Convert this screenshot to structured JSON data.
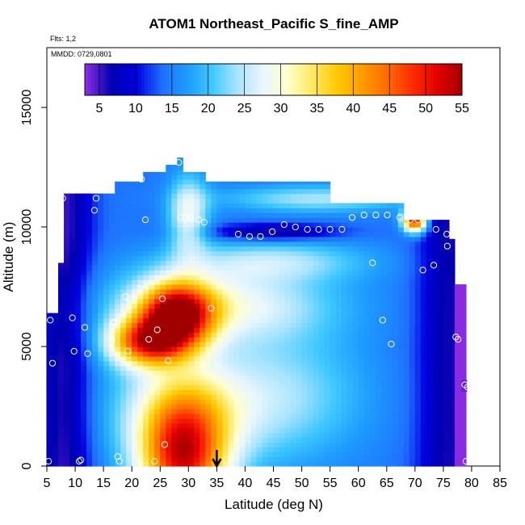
{
  "chart_data": {
    "type": "heatmap",
    "title": "ATOM1 Northeast_Pacific S_fine_AMP",
    "annotations": [
      "Flts: 1,2",
      "MMDD: 0729,0801"
    ],
    "xlabel": "Latitude (deg N)",
    "ylabel": "Altitude (m)",
    "xlim": [
      5,
      85
    ],
    "ylim": [
      0,
      17500
    ],
    "x_ticks": [
      5,
      10,
      15,
      20,
      25,
      30,
      35,
      40,
      45,
      50,
      55,
      60,
      65,
      70,
      75,
      80,
      85
    ],
    "y_ticks": [
      0,
      5000,
      10000,
      15000
    ],
    "colorbar": {
      "ticks": [
        5,
        10,
        15,
        20,
        25,
        30,
        35,
        40,
        45,
        50,
        55
      ],
      "range": [
        3,
        55
      ],
      "placement": "top-inside",
      "colors": [
        "#8A2BE2",
        "#0000B0",
        "#0000E0",
        "#1E6FFF",
        "#1E9BFF",
        "#40C8FF",
        "#A8E4FF",
        "#E8F6FF",
        "#FFFFD0",
        "#FFE860",
        "#FFC800",
        "#FF9A00",
        "#FF6A00",
        "#FF2A00",
        "#E00000",
        "#A00000"
      ]
    },
    "grid": false,
    "latitude_marker": 35,
    "samples": [
      {
        "lat": 5.3,
        "alt": 200
      },
      {
        "lat": 5.6,
        "alt": 6100
      },
      {
        "lat": 6.0,
        "alt": 4300
      },
      {
        "lat": 7.3,
        "alt": 10500
      },
      {
        "lat": 7.8,
        "alt": 11200
      },
      {
        "lat": 9.5,
        "alt": 6200
      },
      {
        "lat": 9.8,
        "alt": 4800
      },
      {
        "lat": 10.7,
        "alt": 200
      },
      {
        "lat": 11.0,
        "alt": 250
      },
      {
        "lat": 11.7,
        "alt": 5800
      },
      {
        "lat": 12.2,
        "alt": 4700
      },
      {
        "lat": 13.4,
        "alt": 10700
      },
      {
        "lat": 13.7,
        "alt": 11200
      },
      {
        "lat": 16.5,
        "alt": 5300
      },
      {
        "lat": 16.8,
        "alt": 6000
      },
      {
        "lat": 17.5,
        "alt": 400
      },
      {
        "lat": 17.8,
        "alt": 200
      },
      {
        "lat": 18.9,
        "alt": 7100
      },
      {
        "lat": 19.3,
        "alt": 4800
      },
      {
        "lat": 21.7,
        "alt": 12000
      },
      {
        "lat": 22.4,
        "alt": 10300
      },
      {
        "lat": 23.0,
        "alt": 5300
      },
      {
        "lat": 24.0,
        "alt": 200
      },
      {
        "lat": 24.5,
        "alt": 5700
      },
      {
        "lat": 25.4,
        "alt": 7000
      },
      {
        "lat": 25.8,
        "alt": 900
      },
      {
        "lat": 26.4,
        "alt": 4400
      },
      {
        "lat": 28.3,
        "alt": 12700
      },
      {
        "lat": 28.6,
        "alt": 10400
      },
      {
        "lat": 29.6,
        "alt": 10400
      },
      {
        "lat": 30.3,
        "alt": 10400
      },
      {
        "lat": 31.8,
        "alt": 10300
      },
      {
        "lat": 32.8,
        "alt": 10200
      },
      {
        "lat": 34.0,
        "alt": 6600
      },
      {
        "lat": 38.8,
        "alt": 9700
      },
      {
        "lat": 40.8,
        "alt": 9600
      },
      {
        "lat": 42.7,
        "alt": 9600
      },
      {
        "lat": 44.8,
        "alt": 9800
      },
      {
        "lat": 46.9,
        "alt": 10100
      },
      {
        "lat": 48.9,
        "alt": 10000
      },
      {
        "lat": 51.0,
        "alt": 9900
      },
      {
        "lat": 53.0,
        "alt": 9900
      },
      {
        "lat": 55.0,
        "alt": 9900
      },
      {
        "lat": 57.1,
        "alt": 9900
      },
      {
        "lat": 58.9,
        "alt": 10400
      },
      {
        "lat": 61.0,
        "alt": 10500
      },
      {
        "lat": 62.5,
        "alt": 8500
      },
      {
        "lat": 63.1,
        "alt": 10500
      },
      {
        "lat": 64.3,
        "alt": 6100
      },
      {
        "lat": 65.1,
        "alt": 10500
      },
      {
        "lat": 65.8,
        "alt": 5100
      },
      {
        "lat": 67.2,
        "alt": 11200
      },
      {
        "lat": 67.3,
        "alt": 10400
      },
      {
        "lat": 69.2,
        "alt": 10300
      },
      {
        "lat": 70.5,
        "alt": 10300
      },
      {
        "lat": 71.4,
        "alt": 8200
      },
      {
        "lat": 73.3,
        "alt": 8400
      },
      {
        "lat": 73.7,
        "alt": 9900
      },
      {
        "lat": 75.6,
        "alt": 9700
      },
      {
        "lat": 75.7,
        "alt": 9200
      },
      {
        "lat": 77.2,
        "alt": 5400
      },
      {
        "lat": 77.6,
        "alt": 5300
      },
      {
        "lat": 78.8,
        "alt": 3400
      },
      {
        "lat": 79.3,
        "alt": 3300
      },
      {
        "lat": 79.0,
        "alt": 200
      }
    ]
  }
}
